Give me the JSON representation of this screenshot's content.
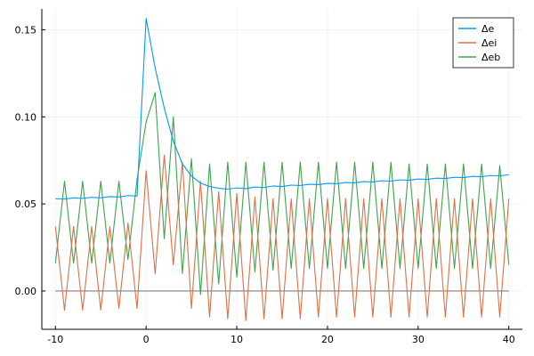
{
  "chart_data": {
    "type": "line",
    "xlim": [
      -11.5,
      41.5
    ],
    "ylim": [
      -0.022,
      0.162
    ],
    "xticks": [
      -10,
      0,
      10,
      20,
      30,
      40
    ],
    "yticks": [
      0.0,
      0.05,
      0.1,
      0.15
    ],
    "ytick_labels": [
      "0.00",
      "0.05",
      "0.10",
      "0.15"
    ],
    "grid": true,
    "legend_position": "top-right",
    "reference_line": {
      "y": 0,
      "x_range": [
        -10,
        40
      ],
      "color": "#7f7f7f"
    },
    "series": [
      {
        "name": "Δe",
        "color": "#009af9",
        "x": [
          -10,
          -9,
          -8,
          -7,
          -6,
          -5,
          -4,
          -3,
          -2,
          -1,
          0,
          1,
          2,
          3,
          4,
          5,
          6,
          7,
          8,
          9,
          10,
          11,
          12,
          13,
          14,
          15,
          16,
          17,
          18,
          19,
          20,
          21,
          22,
          23,
          24,
          25,
          26,
          27,
          28,
          29,
          30,
          31,
          32,
          33,
          34,
          35,
          36,
          37,
          38,
          39,
          40
        ],
        "y": [
          0.053,
          0.0528,
          0.0535,
          0.0532,
          0.0538,
          0.0535,
          0.0542,
          0.054,
          0.0548,
          0.0545,
          0.1565,
          0.128,
          0.105,
          0.086,
          0.073,
          0.066,
          0.062,
          0.06,
          0.059,
          0.0585,
          0.0592,
          0.0588,
          0.0597,
          0.0594,
          0.0603,
          0.06,
          0.0608,
          0.0606,
          0.0613,
          0.0611,
          0.0618,
          0.0616,
          0.0623,
          0.0621,
          0.0628,
          0.0626,
          0.0633,
          0.0631,
          0.0638,
          0.0636,
          0.0643,
          0.0641,
          0.0648,
          0.0646,
          0.0653,
          0.0651,
          0.0658,
          0.0656,
          0.0663,
          0.0661,
          0.0668
        ]
      },
      {
        "name": "Δei",
        "color": "#e26f46",
        "x": [
          -10,
          -9,
          -8,
          -7,
          -6,
          -5,
          -4,
          -3,
          -2,
          -1,
          0,
          1,
          2,
          3,
          4,
          5,
          6,
          7,
          8,
          9,
          10,
          11,
          12,
          13,
          14,
          15,
          16,
          17,
          18,
          19,
          20,
          21,
          22,
          23,
          24,
          25,
          26,
          27,
          28,
          29,
          30,
          31,
          32,
          33,
          34,
          35,
          36,
          37,
          38,
          39,
          40
        ],
        "y": [
          0.037,
          -0.011,
          0.037,
          -0.011,
          0.037,
          -0.011,
          0.037,
          -0.01,
          0.039,
          -0.01,
          0.069,
          0.01,
          0.078,
          0.015,
          0.074,
          -0.01,
          0.063,
          -0.015,
          0.057,
          -0.016,
          0.056,
          -0.017,
          0.054,
          -0.016,
          0.053,
          -0.016,
          0.053,
          -0.016,
          0.053,
          -0.015,
          0.053,
          -0.015,
          0.053,
          -0.015,
          0.053,
          -0.015,
          0.053,
          -0.015,
          0.053,
          -0.015,
          0.053,
          -0.015,
          0.053,
          -0.015,
          0.053,
          -0.015,
          0.053,
          -0.015,
          0.053,
          -0.015,
          0.053
        ]
      },
      {
        "name": "Δeb",
        "color": "#3da44d",
        "x": [
          -10,
          -9,
          -8,
          -7,
          -6,
          -5,
          -4,
          -3,
          -2,
          -1,
          0,
          1,
          2,
          3,
          4,
          5,
          6,
          7,
          8,
          9,
          10,
          11,
          12,
          13,
          14,
          15,
          16,
          17,
          18,
          19,
          20,
          21,
          22,
          23,
          24,
          25,
          26,
          27,
          28,
          29,
          30,
          31,
          32,
          33,
          34,
          35,
          36,
          37,
          38,
          39,
          40
        ],
        "y": [
          0.016,
          0.063,
          0.016,
          0.063,
          0.016,
          0.063,
          0.016,
          0.063,
          0.018,
          0.064,
          0.097,
          0.114,
          0.03,
          0.1,
          0.01,
          0.076,
          -0.002,
          0.073,
          0.004,
          0.074,
          0.008,
          0.074,
          0.011,
          0.074,
          0.012,
          0.074,
          0.013,
          0.074,
          0.013,
          0.074,
          0.013,
          0.074,
          0.013,
          0.074,
          0.013,
          0.074,
          0.013,
          0.074,
          0.013,
          0.073,
          0.013,
          0.073,
          0.013,
          0.073,
          0.013,
          0.073,
          0.013,
          0.073,
          0.013,
          0.072,
          0.015
        ]
      }
    ]
  }
}
